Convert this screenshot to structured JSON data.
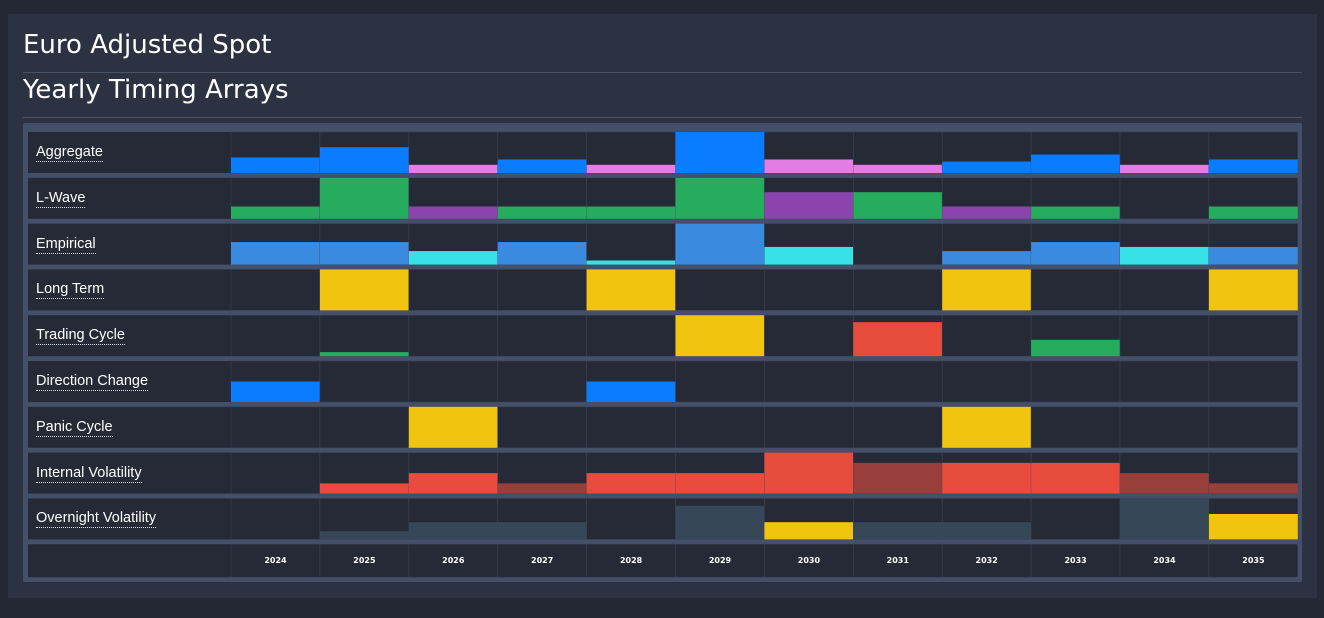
{
  "header": {
    "title": "Euro Adjusted Spot",
    "subtitle": "Yearly Timing Arrays"
  },
  "colors": {
    "background": "#232834",
    "panel": "#2c3241",
    "cell": "#252a36",
    "frame": "#445069",
    "blue": "#0a7cff",
    "pink": "#e37ce3",
    "green": "#25ac5c",
    "purple": "#8b44ad",
    "lightblue": "#3a8be0",
    "cyan": "#38e1e6",
    "yellow": "#f1c40f",
    "red": "#e84c3d",
    "darkred": "#9a3e3c",
    "slate": "#364858"
  },
  "chart_data": {
    "type": "heatmap",
    "title": "Yearly Timing Arrays",
    "x": [
      "2024",
      "2025",
      "2026",
      "2027",
      "2028",
      "2029",
      "2030",
      "2031",
      "2032",
      "2033",
      "2034",
      "2035"
    ],
    "ylim": [
      0,
      1
    ],
    "series": [
      {
        "name": "Aggregate",
        "values": [
          0.38,
          0.63,
          0.2,
          0.33,
          0.2,
          1.0,
          0.33,
          0.2,
          0.28,
          0.45,
          0.2,
          0.33
        ],
        "colors": [
          "blue",
          "blue",
          "pink",
          "blue",
          "pink",
          "blue",
          "pink",
          "pink",
          "blue",
          "blue",
          "pink",
          "blue"
        ]
      },
      {
        "name": "L-Wave",
        "values": [
          0.3,
          1.0,
          0.3,
          0.3,
          0.3,
          1.0,
          0.65,
          0.65,
          0.3,
          0.3,
          0,
          0.3
        ],
        "colors": [
          "green",
          "green",
          "purple",
          "green",
          "green",
          "green",
          "purple",
          "green",
          "purple",
          "green",
          "green",
          "green"
        ]
      },
      {
        "name": "Empirical",
        "values": [
          0.55,
          0.55,
          0.33,
          0.55,
          0.1,
          1.0,
          0.43,
          0,
          0.33,
          0.55,
          0.43,
          0.43
        ],
        "colors": [
          "lightblue",
          "lightblue",
          "cyan",
          "lightblue",
          "cyan",
          "lightblue",
          "cyan",
          "cyan",
          "lightblue",
          "lightblue",
          "cyan",
          "lightblue"
        ]
      },
      {
        "name": "Long Term",
        "values": [
          0,
          1.0,
          0,
          0,
          1.0,
          0,
          0,
          0,
          1.0,
          0,
          0,
          1.0
        ],
        "colors": [
          "yellow",
          "yellow",
          "yellow",
          "yellow",
          "yellow",
          "yellow",
          "yellow",
          "yellow",
          "yellow",
          "yellow",
          "yellow",
          "yellow"
        ]
      },
      {
        "name": "Trading Cycle",
        "values": [
          0,
          0.1,
          0,
          0,
          0,
          1.0,
          0,
          0.83,
          0,
          0.4,
          0,
          0
        ],
        "colors": [
          "green",
          "green",
          "green",
          "green",
          "green",
          "yellow",
          "green",
          "red",
          "green",
          "green",
          "green",
          "green"
        ]
      },
      {
        "name": "Direction Change",
        "values": [
          0.5,
          0,
          0,
          0,
          0.5,
          0,
          0,
          0,
          0,
          0,
          0,
          0
        ],
        "colors": [
          "blue",
          "blue",
          "blue",
          "blue",
          "blue",
          "blue",
          "blue",
          "blue",
          "blue",
          "blue",
          "blue",
          "blue"
        ]
      },
      {
        "name": "Panic Cycle",
        "values": [
          0,
          0,
          1.0,
          0,
          0,
          0,
          0,
          0,
          1.0,
          0,
          0,
          0
        ],
        "colors": [
          "yellow",
          "yellow",
          "yellow",
          "yellow",
          "yellow",
          "yellow",
          "yellow",
          "yellow",
          "yellow",
          "yellow",
          "yellow",
          "yellow"
        ]
      },
      {
        "name": "Internal Volatility",
        "values": [
          0,
          0.25,
          0.5,
          0.25,
          0.5,
          0.5,
          1.0,
          0.75,
          0.75,
          0.75,
          0.5,
          0.25
        ],
        "colors": [
          "red",
          "red",
          "red",
          "darkred",
          "red",
          "red",
          "red",
          "darkred",
          "red",
          "red",
          "darkred",
          "darkred"
        ]
      },
      {
        "name": "Overnight Volatility",
        "values": [
          0,
          0.2,
          0.42,
          0.42,
          0,
          0.82,
          0.42,
          0.42,
          0.42,
          0,
          1.0,
          0.62
        ],
        "colors": [
          "slate",
          "slate",
          "slate",
          "slate",
          "slate",
          "slate",
          "yellow",
          "slate",
          "slate",
          "slate",
          "slate",
          "yellow"
        ]
      }
    ]
  }
}
